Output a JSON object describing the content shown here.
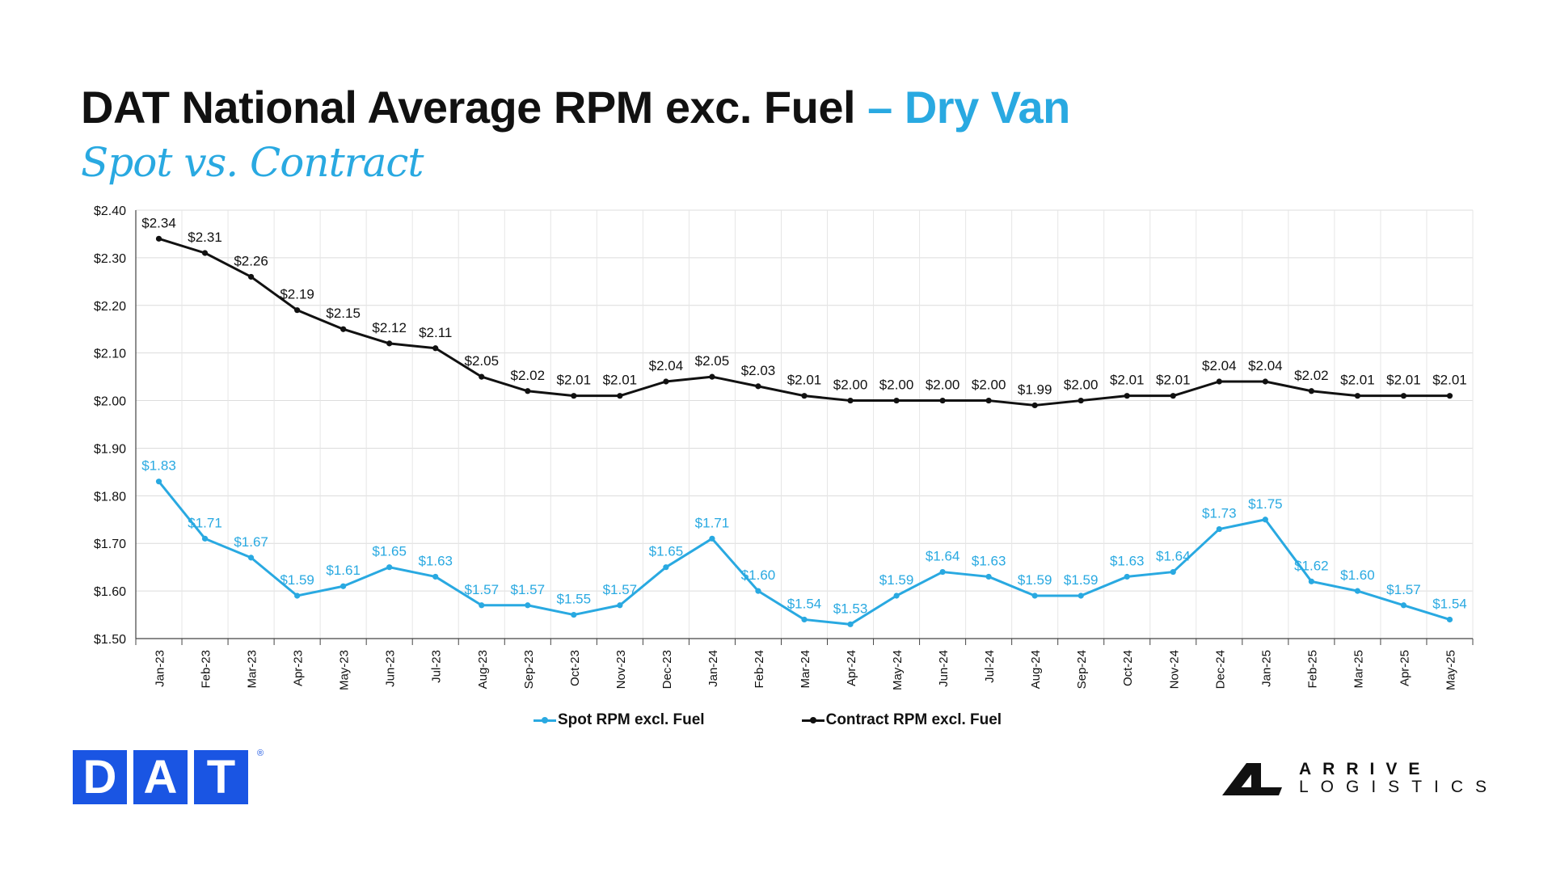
{
  "title": {
    "main": "DAT National Average RPM exc. Fuel",
    "accent": "– Dry Van",
    "subtitle": "Spot vs. Contract"
  },
  "colors": {
    "spot": "#29a9e1",
    "contract": "#111111",
    "brand_dat": "#1a55e3"
  },
  "logos": {
    "dat_letters": [
      "D",
      "A",
      "T"
    ],
    "dat_registered": "®",
    "arrive_line1": "ARRIVE",
    "arrive_line2": "LOGISTICS",
    "arrive_icon": "arrive-logistics-mark-icon"
  },
  "chart_data": {
    "type": "line",
    "categories": [
      "Jan-23",
      "Feb-23",
      "Mar-23",
      "Apr-23",
      "May-23",
      "Jun-23",
      "Jul-23",
      "Aug-23",
      "Sep-23",
      "Oct-23",
      "Nov-23",
      "Dec-23",
      "Jan-24",
      "Feb-24",
      "Mar-24",
      "Apr-24",
      "May-24",
      "Jun-24",
      "Jul-24",
      "Aug-24",
      "Sep-24",
      "Oct-24",
      "Nov-24",
      "Dec-24",
      "Jan-25",
      "Feb-25",
      "Mar-25",
      "Apr-25",
      "May-25"
    ],
    "series": [
      {
        "name": "Spot RPM excl. Fuel",
        "color": "#29a9e1",
        "values": [
          1.83,
          1.71,
          1.67,
          1.59,
          1.61,
          1.65,
          1.63,
          1.57,
          1.57,
          1.55,
          1.57,
          1.65,
          1.71,
          1.6,
          1.54,
          1.53,
          1.59,
          1.64,
          1.63,
          1.59,
          1.59,
          1.63,
          1.64,
          1.73,
          1.75,
          1.62,
          1.6,
          1.57,
          1.54
        ]
      },
      {
        "name": "Contract RPM excl. Fuel",
        "color": "#111111",
        "values": [
          2.34,
          2.31,
          2.26,
          2.19,
          2.15,
          2.12,
          2.11,
          2.05,
          2.02,
          2.01,
          2.01,
          2.04,
          2.05,
          2.03,
          2.01,
          2.0,
          2.0,
          2.0,
          2.0,
          1.99,
          2.0,
          2.01,
          2.01,
          2.04,
          2.04,
          2.02,
          2.01,
          2.01,
          2.01
        ]
      }
    ],
    "ylim": [
      1.5,
      2.4
    ],
    "yticks": [
      "$1.50",
      "$1.60",
      "$1.70",
      "$1.80",
      "$1.90",
      "$2.00",
      "$2.10",
      "$2.20",
      "$2.30",
      "$2.40"
    ],
    "value_prefix": "$",
    "grid": true,
    "legend": "bottom"
  }
}
